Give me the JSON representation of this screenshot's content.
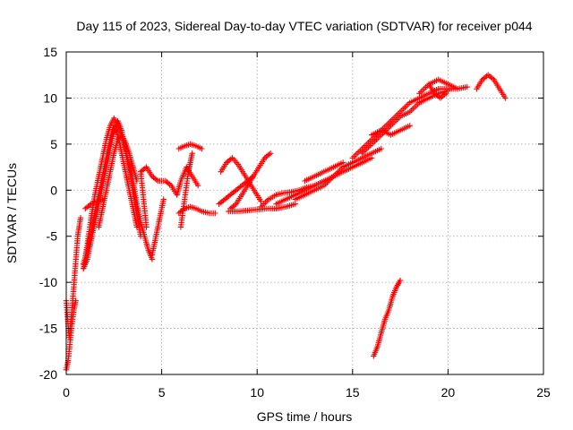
{
  "chart_data": {
    "type": "scatter",
    "title": "Day 115 of 2023, Sidereal Day-to-day VTEC variation (SDTVAR) for receiver p044",
    "xlabel": "GPS time / hours",
    "ylabel": "SDTVAR / TECUs",
    "xlim": [
      0,
      25
    ],
    "ylim": [
      -20,
      15
    ],
    "xticks": [
      0,
      5,
      10,
      15,
      20,
      25
    ],
    "yticks": [
      -20,
      -15,
      -10,
      -5,
      0,
      5,
      10,
      15
    ],
    "grid": true,
    "legend": "none",
    "marker": "plus",
    "color": "#ff0000",
    "series": [
      {
        "segments": [
          [
            [
              0.0,
              -12.0
            ],
            [
              0.15,
              -16.0
            ],
            [
              0.3,
              -13.0
            ],
            [
              0.45,
              -9.0
            ],
            [
              0.6,
              -5.0
            ],
            [
              0.75,
              -3.0
            ]
          ],
          [
            [
              0.0,
              -19.5
            ],
            [
              0.1,
              -18.5
            ],
            [
              0.2,
              -16.5
            ],
            [
              0.3,
              -14.5
            ],
            [
              0.4,
              -13.0
            ],
            [
              0.5,
              -12.0
            ]
          ],
          [
            [
              0.9,
              -8.5
            ],
            [
              1.1,
              -6.0
            ],
            [
              1.3,
              -3.0
            ],
            [
              1.5,
              -0.5
            ],
            [
              1.7,
              1.5
            ],
            [
              1.9,
              3.5
            ],
            [
              2.1,
              5.5
            ],
            [
              2.3,
              7.0
            ],
            [
              2.5,
              7.8
            ],
            [
              2.7,
              7.2
            ],
            [
              2.9,
              5.8
            ],
            [
              3.1,
              4.2
            ],
            [
              3.3,
              2.2
            ],
            [
              3.5,
              0.0
            ],
            [
              3.7,
              -2.5
            ],
            [
              3.9,
              -5.0
            ]
          ],
          [
            [
              0.9,
              -8.5
            ],
            [
              1.1,
              -7.5
            ],
            [
              1.3,
              -5.5
            ],
            [
              1.5,
              -3.5
            ],
            [
              1.7,
              -1.5
            ],
            [
              1.9,
              0.5
            ],
            [
              2.1,
              2.5
            ],
            [
              2.3,
              4.5
            ],
            [
              2.5,
              6.5
            ],
            [
              2.7,
              7.5
            ],
            [
              2.9,
              6.5
            ],
            [
              3.1,
              4.5
            ],
            [
              3.3,
              2.8
            ],
            [
              3.5,
              1.0
            ],
            [
              3.7,
              -1.5
            ],
            [
              3.9,
              -3.5
            ],
            [
              4.1,
              -5.0
            ],
            [
              4.3,
              -6.5
            ],
            [
              4.5,
              -7.5
            ]
          ],
          [
            [
              0.9,
              -8.0
            ],
            [
              1.1,
              -6.5
            ],
            [
              1.3,
              -4.5
            ],
            [
              1.5,
              -2.5
            ],
            [
              1.7,
              -0.5
            ],
            [
              1.9,
              1.5
            ],
            [
              2.1,
              3.5
            ],
            [
              2.3,
              5.5
            ],
            [
              2.5,
              7.0
            ],
            [
              2.7,
              6.0
            ],
            [
              2.9,
              4.0
            ],
            [
              3.1,
              2.0
            ],
            [
              3.3,
              0.0
            ],
            [
              3.5,
              -2.0
            ],
            [
              3.7,
              -4.0
            ]
          ],
          [
            [
              1.7,
              -4.0
            ],
            [
              1.9,
              -2.0
            ],
            [
              2.1,
              0.0
            ],
            [
              2.3,
              2.0
            ],
            [
              2.5,
              4.0
            ],
            [
              2.7,
              5.5
            ],
            [
              2.9,
              6.0
            ],
            [
              3.1,
              5.2
            ],
            [
              3.3,
              4.0
            ],
            [
              3.5,
              2.5
            ],
            [
              3.7,
              1.0
            ]
          ],
          [
            [
              1.0,
              -2.0
            ],
            [
              1.3,
              -1.5
            ],
            [
              1.6,
              -1.2
            ],
            [
              1.9,
              -1.0
            ]
          ],
          [
            [
              4.2,
              -4.0
            ],
            [
              4.1,
              -2.0
            ],
            [
              4.0,
              0.0
            ],
            [
              3.9,
              2.0
            ],
            [
              4.2,
              2.5
            ],
            [
              4.5,
              1.5
            ],
            [
              4.8,
              1.0
            ],
            [
              5.2,
              1.0
            ],
            [
              5.5,
              0.5
            ],
            [
              5.8,
              -0.5
            ]
          ],
          [
            [
              4.5,
              -7.0
            ],
            [
              4.7,
              -5.0
            ],
            [
              4.9,
              -3.0
            ],
            [
              5.1,
              -1.0
            ]
          ],
          [
            [
              6.0,
              -4.0
            ],
            [
              6.1,
              -2.5
            ],
            [
              6.2,
              -1.0
            ],
            [
              6.3,
              0.5
            ],
            [
              6.4,
              2.0
            ],
            [
              6.5,
              3.0
            ],
            [
              6.6,
              4.0
            ]
          ],
          [
            [
              5.9,
              4.5
            ],
            [
              6.2,
              4.8
            ],
            [
              6.5,
              5.0
            ],
            [
              6.8,
              4.8
            ],
            [
              7.1,
              4.5
            ]
          ],
          [
            [
              5.9,
              -2.5
            ],
            [
              6.2,
              -2.0
            ],
            [
              6.5,
              -1.8
            ],
            [
              6.8,
              -2.0
            ],
            [
              7.1,
              -2.3
            ],
            [
              7.5,
              -2.5
            ],
            [
              7.8,
              -2.5
            ]
          ],
          [
            [
              5.8,
              -0.5
            ],
            [
              6.0,
              1.0
            ],
            [
              6.3,
              2.5
            ],
            [
              6.6,
              1.5
            ],
            [
              6.9,
              0.5
            ]
          ],
          [
            [
              8.0,
              -1.5
            ],
            [
              8.3,
              -1.0
            ],
            [
              8.6,
              -0.5
            ],
            [
              8.9,
              0.0
            ],
            [
              9.2,
              0.5
            ],
            [
              9.5,
              1.0
            ],
            [
              9.8,
              1.5
            ]
          ],
          [
            [
              8.1,
              2.0
            ],
            [
              8.4,
              3.0
            ],
            [
              8.7,
              3.5
            ],
            [
              9.0,
              2.8
            ],
            [
              9.3,
              1.8
            ],
            [
              9.6,
              0.8
            ],
            [
              9.9,
              -0.2
            ],
            [
              10.2,
              -1.2
            ]
          ],
          [
            [
              8.6,
              -2.0
            ],
            [
              8.9,
              -1.5
            ],
            [
              9.2,
              -0.5
            ],
            [
              9.5,
              0.5
            ],
            [
              9.8,
              1.5
            ],
            [
              10.1,
              2.5
            ],
            [
              10.4,
              3.5
            ],
            [
              10.7,
              4.0
            ]
          ],
          [
            [
              8.5,
              -2.3
            ],
            [
              9.0,
              -2.3
            ],
            [
              9.5,
              -2.2
            ],
            [
              10.0,
              -2.1
            ],
            [
              10.5,
              -2.0
            ],
            [
              11.0,
              -2.0
            ],
            [
              11.5,
              -1.8
            ],
            [
              12.0,
              -1.5
            ]
          ],
          [
            [
              10.2,
              -1.8
            ],
            [
              10.6,
              -1.0
            ],
            [
              11.0,
              -0.5
            ],
            [
              11.4,
              -0.3
            ],
            [
              11.8,
              -0.2
            ],
            [
              12.2,
              0.0
            ],
            [
              12.6,
              0.3
            ],
            [
              13.0,
              0.5
            ]
          ],
          [
            [
              11.0,
              -1.5
            ],
            [
              11.5,
              -1.0
            ],
            [
              12.0,
              -0.5
            ],
            [
              12.5,
              0.0
            ],
            [
              13.0,
              0.5
            ],
            [
              13.5,
              1.0
            ],
            [
              14.0,
              1.5
            ],
            [
              14.5,
              2.0
            ],
            [
              15.0,
              2.5
            ],
            [
              15.5,
              3.0
            ],
            [
              16.0,
              3.5
            ]
          ],
          [
            [
              12.0,
              -1.0
            ],
            [
              12.5,
              -0.5
            ],
            [
              13.0,
              0.0
            ],
            [
              13.5,
              0.5
            ],
            [
              14.0,
              1.5
            ],
            [
              14.5,
              2.5
            ],
            [
              15.0,
              3.0
            ],
            [
              15.5,
              3.5
            ],
            [
              16.0,
              4.0
            ],
            [
              16.5,
              4.5
            ]
          ],
          [
            [
              12.5,
              1.0
            ],
            [
              13.0,
              1.5
            ],
            [
              13.5,
              2.0
            ],
            [
              14.0,
              2.5
            ],
            [
              14.5,
              3.0
            ]
          ],
          [
            [
              15.0,
              3.5
            ],
            [
              15.5,
              4.5
            ],
            [
              16.0,
              5.5
            ],
            [
              16.5,
              6.5
            ],
            [
              17.0,
              7.5
            ],
            [
              17.5,
              8.5
            ],
            [
              18.0,
              9.5
            ],
            [
              18.5,
              10.0
            ],
            [
              19.0,
              10.5
            ],
            [
              19.5,
              11.0
            ],
            [
              20.0,
              11.0
            ],
            [
              20.5,
              11.0
            ],
            [
              21.0,
              11.2
            ]
          ],
          [
            [
              15.5,
              4.0
            ],
            [
              16.0,
              5.0
            ],
            [
              16.5,
              6.0
            ],
            [
              17.0,
              7.0
            ],
            [
              17.5,
              8.0
            ],
            [
              18.0,
              8.5
            ],
            [
              18.5,
              9.5
            ],
            [
              19.0,
              10.0
            ],
            [
              19.5,
              10.5
            ],
            [
              20.0,
              10.8
            ]
          ],
          [
            [
              16.0,
              6.0
            ],
            [
              16.5,
              6.5
            ],
            [
              17.0,
              6.0
            ],
            [
              17.5,
              6.5
            ],
            [
              18.0,
              7.0
            ]
          ],
          [
            [
              18.5,
              10.5
            ],
            [
              19.0,
              11.5
            ],
            [
              19.5,
              12.0
            ],
            [
              20.0,
              11.5
            ],
            [
              20.5,
              11.0
            ]
          ],
          [
            [
              19.0,
              11.5
            ],
            [
              19.3,
              10.5
            ],
            [
              19.6,
              10.0
            ],
            [
              19.9,
              10.5
            ]
          ],
          [
            [
              21.5,
              11.0
            ],
            [
              21.8,
              12.0
            ],
            [
              22.1,
              12.5
            ],
            [
              22.4,
              12.0
            ],
            [
              22.7,
              11.0
            ],
            [
              23.0,
              10.0
            ]
          ],
          [
            [
              16.1,
              -18.0
            ],
            [
              16.3,
              -17.0
            ],
            [
              16.5,
              -15.5
            ],
            [
              16.7,
              -14.0
            ],
            [
              16.9,
              -13.0
            ],
            [
              17.1,
              -11.5
            ],
            [
              17.3,
              -10.5
            ],
            [
              17.5,
              -9.8
            ]
          ]
        ]
      }
    ]
  }
}
